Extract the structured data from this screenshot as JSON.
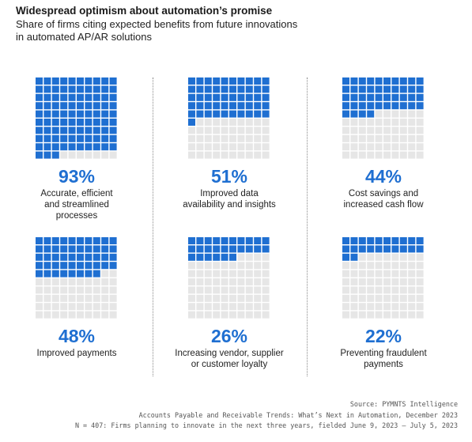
{
  "title": "Widespread optimism about automation’s promise",
  "subtitle_line1": "Share of firms citing expected benefits from future innovations",
  "subtitle_line2": "in automated AP/AR solutions",
  "colors": {
    "filled": "#1f6fd1",
    "empty": "#e6e6e6",
    "accent_text": "#1f6fd1"
  },
  "chart_data": {
    "type": "waffle",
    "grid": [
      10,
      10
    ],
    "categories": [
      "Accurate, efficient and streamlined processes",
      "Improved data availability and insights",
      "Cost savings and increased cash flow",
      "Improved payments",
      "Increasing vendor, supplier or customer loyalty",
      "Preventing fraudulent payments"
    ],
    "values": [
      93,
      51,
      44,
      48,
      26,
      22
    ],
    "unit": "%"
  },
  "panels": [
    {
      "value_label": "93%",
      "label_lines": [
        "Accurate, efficient",
        "and streamlined",
        "processes"
      ]
    },
    {
      "value_label": "51%",
      "label_lines": [
        "Improved data",
        "availability and insights"
      ]
    },
    {
      "value_label": "44%",
      "label_lines": [
        "Cost savings and",
        "increased cash flow"
      ]
    },
    {
      "value_label": "48%",
      "label_lines": [
        "Improved payments"
      ]
    },
    {
      "value_label": "26%",
      "label_lines": [
        "Increasing vendor, supplier",
        "or customer loyalty"
      ]
    },
    {
      "value_label": "22%",
      "label_lines": [
        "Preventing fraudulent",
        "payments"
      ]
    }
  ],
  "footer": {
    "source": "Source: PYMNTS Intelligence",
    "report": "Accounts Payable and Receivable Trends: What’s Next in Automation, December 2023",
    "sample": "N = 407: Firms planning to innovate in the next three years, fielded June 9, 2023 – July 5, 2023"
  }
}
